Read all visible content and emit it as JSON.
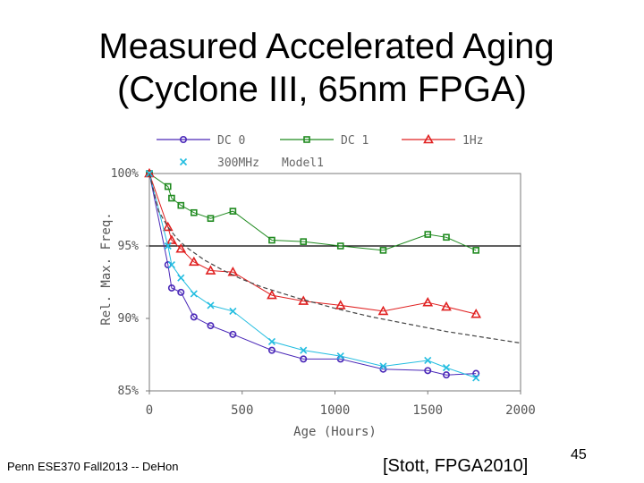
{
  "slide": {
    "title_line1": "Measured Accelerated Aging",
    "title_line2": "(Cyclone III, 65nm FPGA)",
    "footer": "Penn ESE370 Fall2013 -- DeHon",
    "citation": "[Stott, FPGA2010]",
    "page_number": "45"
  },
  "colors": {
    "dc0": "#4a28b8",
    "dc1": "#1f8a1f",
    "1hz": "#e02020",
    "300mhz": "#22bde0",
    "model": "#444444"
  },
  "chart_data": {
    "type": "line",
    "xlabel": "Age (Hours)",
    "ylabel": "Rel. Max. Freq.",
    "xlim": [
      0,
      2000
    ],
    "ylim": [
      85,
      100
    ],
    "xticks": [
      0,
      500,
      1000,
      1500,
      2000
    ],
    "yticks": [
      85,
      90,
      95,
      100
    ],
    "ytick_labels": [
      "85%",
      "90%",
      "95%",
      "100%"
    ],
    "reference_line": 95,
    "series": [
      {
        "name": "DC 0",
        "marker": "circle",
        "color_key": "dc0",
        "x": [
          0,
          100,
          120,
          170,
          240,
          330,
          450,
          660,
          830,
          1030,
          1260,
          1500,
          1600,
          1760
        ],
        "y": [
          100,
          93.7,
          92.1,
          91.8,
          90.1,
          89.5,
          88.9,
          87.8,
          87.2,
          87.2,
          86.5,
          86.4,
          86.1,
          86.2
        ]
      },
      {
        "name": "DC 1",
        "marker": "square",
        "color_key": "dc1",
        "x": [
          0,
          100,
          120,
          170,
          240,
          330,
          450,
          660,
          830,
          1030,
          1260,
          1500,
          1600,
          1760
        ],
        "y": [
          100,
          99.1,
          98.3,
          97.8,
          97.3,
          96.9,
          97.4,
          95.4,
          95.3,
          95.0,
          94.7,
          95.8,
          95.6,
          94.7
        ]
      },
      {
        "name": "1Hz",
        "marker": "triangle",
        "color_key": "1hz",
        "x": [
          0,
          100,
          120,
          170,
          240,
          330,
          450,
          660,
          830,
          1030,
          1260,
          1500,
          1600,
          1760
        ],
        "y": [
          100,
          96.3,
          95.4,
          94.8,
          93.9,
          93.3,
          93.2,
          91.6,
          91.2,
          90.9,
          90.5,
          91.1,
          90.8,
          90.3
        ]
      },
      {
        "name": "300MHz",
        "marker": "x",
        "color_key": "300mhz",
        "x": [
          0,
          100,
          120,
          170,
          240,
          330,
          450,
          660,
          830,
          1030,
          1260,
          1500,
          1600,
          1760
        ],
        "y": [
          100,
          95.0,
          93.7,
          92.8,
          91.7,
          90.9,
          90.5,
          88.4,
          87.8,
          87.4,
          86.7,
          87.1,
          86.6,
          85.9
        ]
      },
      {
        "name": "Model1",
        "marker": "none",
        "style": "dashed",
        "color_key": "model",
        "x": [
          0,
          50,
          100,
          150,
          200,
          300,
          400,
          500,
          600,
          800,
          1000,
          1200,
          1400,
          1600,
          1800,
          2000
        ],
        "y": [
          100,
          97.4,
          96.3,
          95.5,
          94.9,
          94.0,
          93.3,
          92.7,
          92.2,
          91.4,
          90.7,
          90.1,
          89.6,
          89.1,
          88.7,
          88.3
        ]
      }
    ]
  }
}
